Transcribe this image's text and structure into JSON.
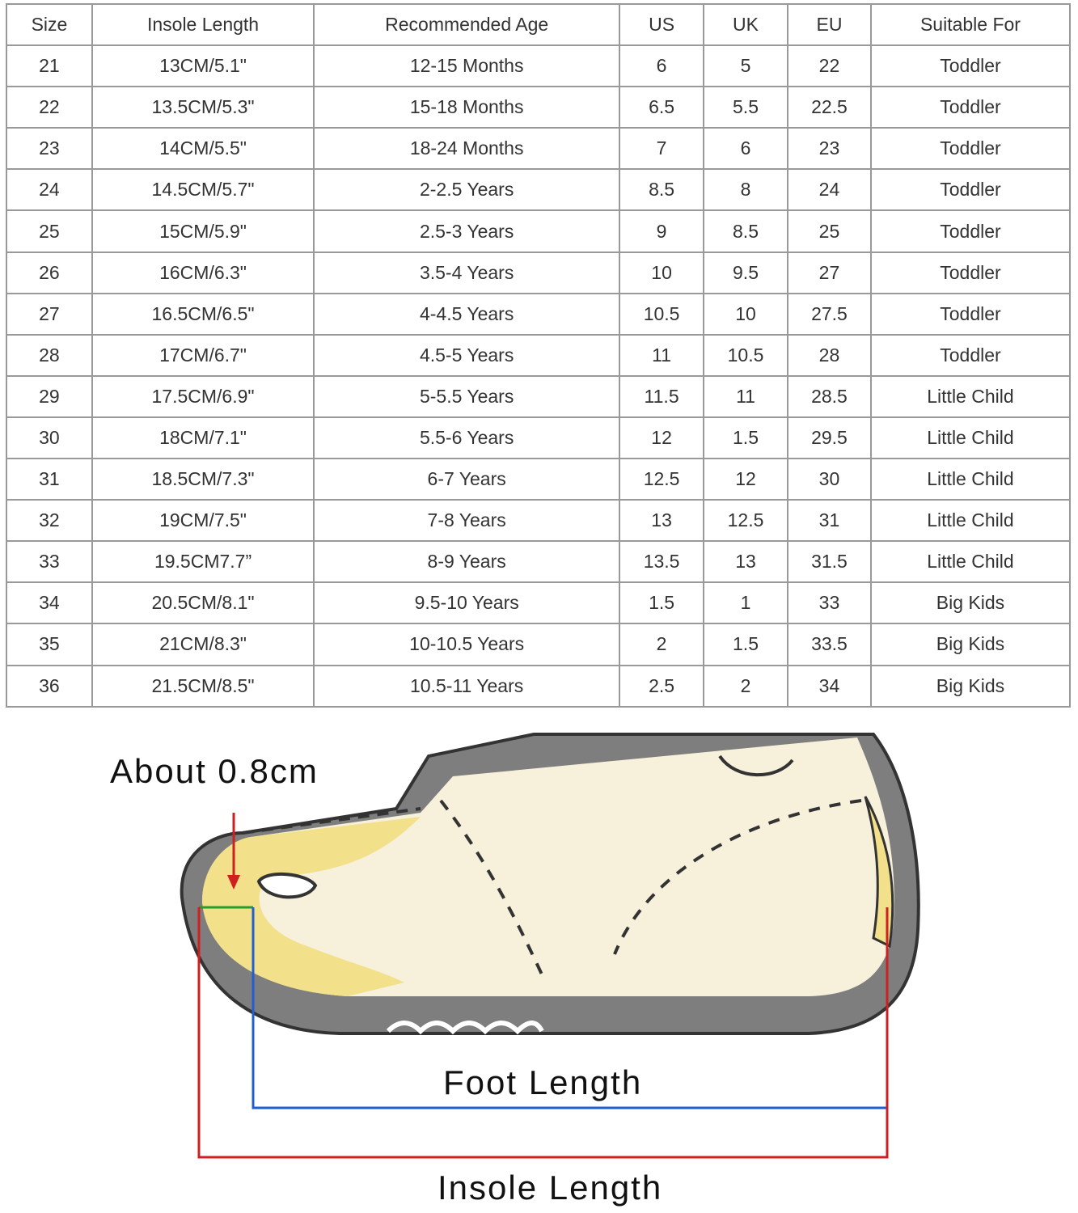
{
  "table": {
    "headers": [
      "Size",
      "Insole Length",
      "Recommended Age",
      "US",
      "UK",
      "EU",
      "Suitable For"
    ],
    "rows": [
      [
        "21",
        "13CM/5.1\"",
        "12-15 Months",
        "6",
        "5",
        "22",
        "Toddler"
      ],
      [
        "22",
        "13.5CM/5.3\"",
        "15-18 Months",
        "6.5",
        "5.5",
        "22.5",
        "Toddler"
      ],
      [
        "23",
        "14CM/5.5\"",
        "18-24 Months",
        "7",
        "6",
        "23",
        "Toddler"
      ],
      [
        "24",
        "14.5CM/5.7\"",
        "2-2.5 Years",
        "8.5",
        "8",
        "24",
        "Toddler"
      ],
      [
        "25",
        "15CM/5.9\"",
        "2.5-3 Years",
        "9",
        "8.5",
        "25",
        "Toddler"
      ],
      [
        "26",
        "16CM/6.3\"",
        "3.5-4 Years",
        "10",
        "9.5",
        "27",
        "Toddler"
      ],
      [
        "27",
        "16.5CM/6.5\"",
        "4-4.5 Years",
        "10.5",
        "10",
        "27.5",
        "Toddler"
      ],
      [
        "28",
        "17CM/6.7\"",
        "4.5-5 Years",
        "11",
        "10.5",
        "28",
        "Toddler"
      ],
      [
        "29",
        "17.5CM/6.9\"",
        "5-5.5 Years",
        "11.5",
        "11",
        "28.5",
        "Little Child"
      ],
      [
        "30",
        "18CM/7.1\"",
        "5.5-6 Years",
        "12",
        "1.5",
        "29.5",
        "Little Child"
      ],
      [
        "31",
        "18.5CM/7.3\"",
        "6-7 Years",
        "12.5",
        "12",
        "30",
        "Little Child"
      ],
      [
        "32",
        "19CM/7.5\"",
        "7-8 Years",
        "13",
        "12.5",
        "31",
        "Little Child"
      ],
      [
        "33",
        "19.5CM7.7”",
        "8-9 Years",
        "13.5",
        "13",
        "31.5",
        "Little Child"
      ],
      [
        "34",
        "20.5CM/8.1\"",
        "9.5-10 Years",
        "1.5",
        "1",
        "33",
        "Big Kids"
      ],
      [
        "35",
        "21CM/8.3\"",
        "10-10.5 Years",
        "2",
        "1.5",
        "33.5",
        "Big Kids"
      ],
      [
        "36",
        "21.5CM/8.5\"",
        "10.5-11 Years",
        "2.5",
        "2",
        "34",
        "Big Kids"
      ]
    ]
  },
  "diagram": {
    "toe_gap_label": "About 0.8cm",
    "foot_length_label": "Foot Length",
    "insole_length_label": "Insole Length",
    "colors": {
      "foot_line": "#1f5fd0",
      "insole_line": "#d01f1f",
      "gap_line": "#2a9a2a",
      "shoe": "#8a8a8a",
      "insole": "#f3e08a"
    }
  }
}
